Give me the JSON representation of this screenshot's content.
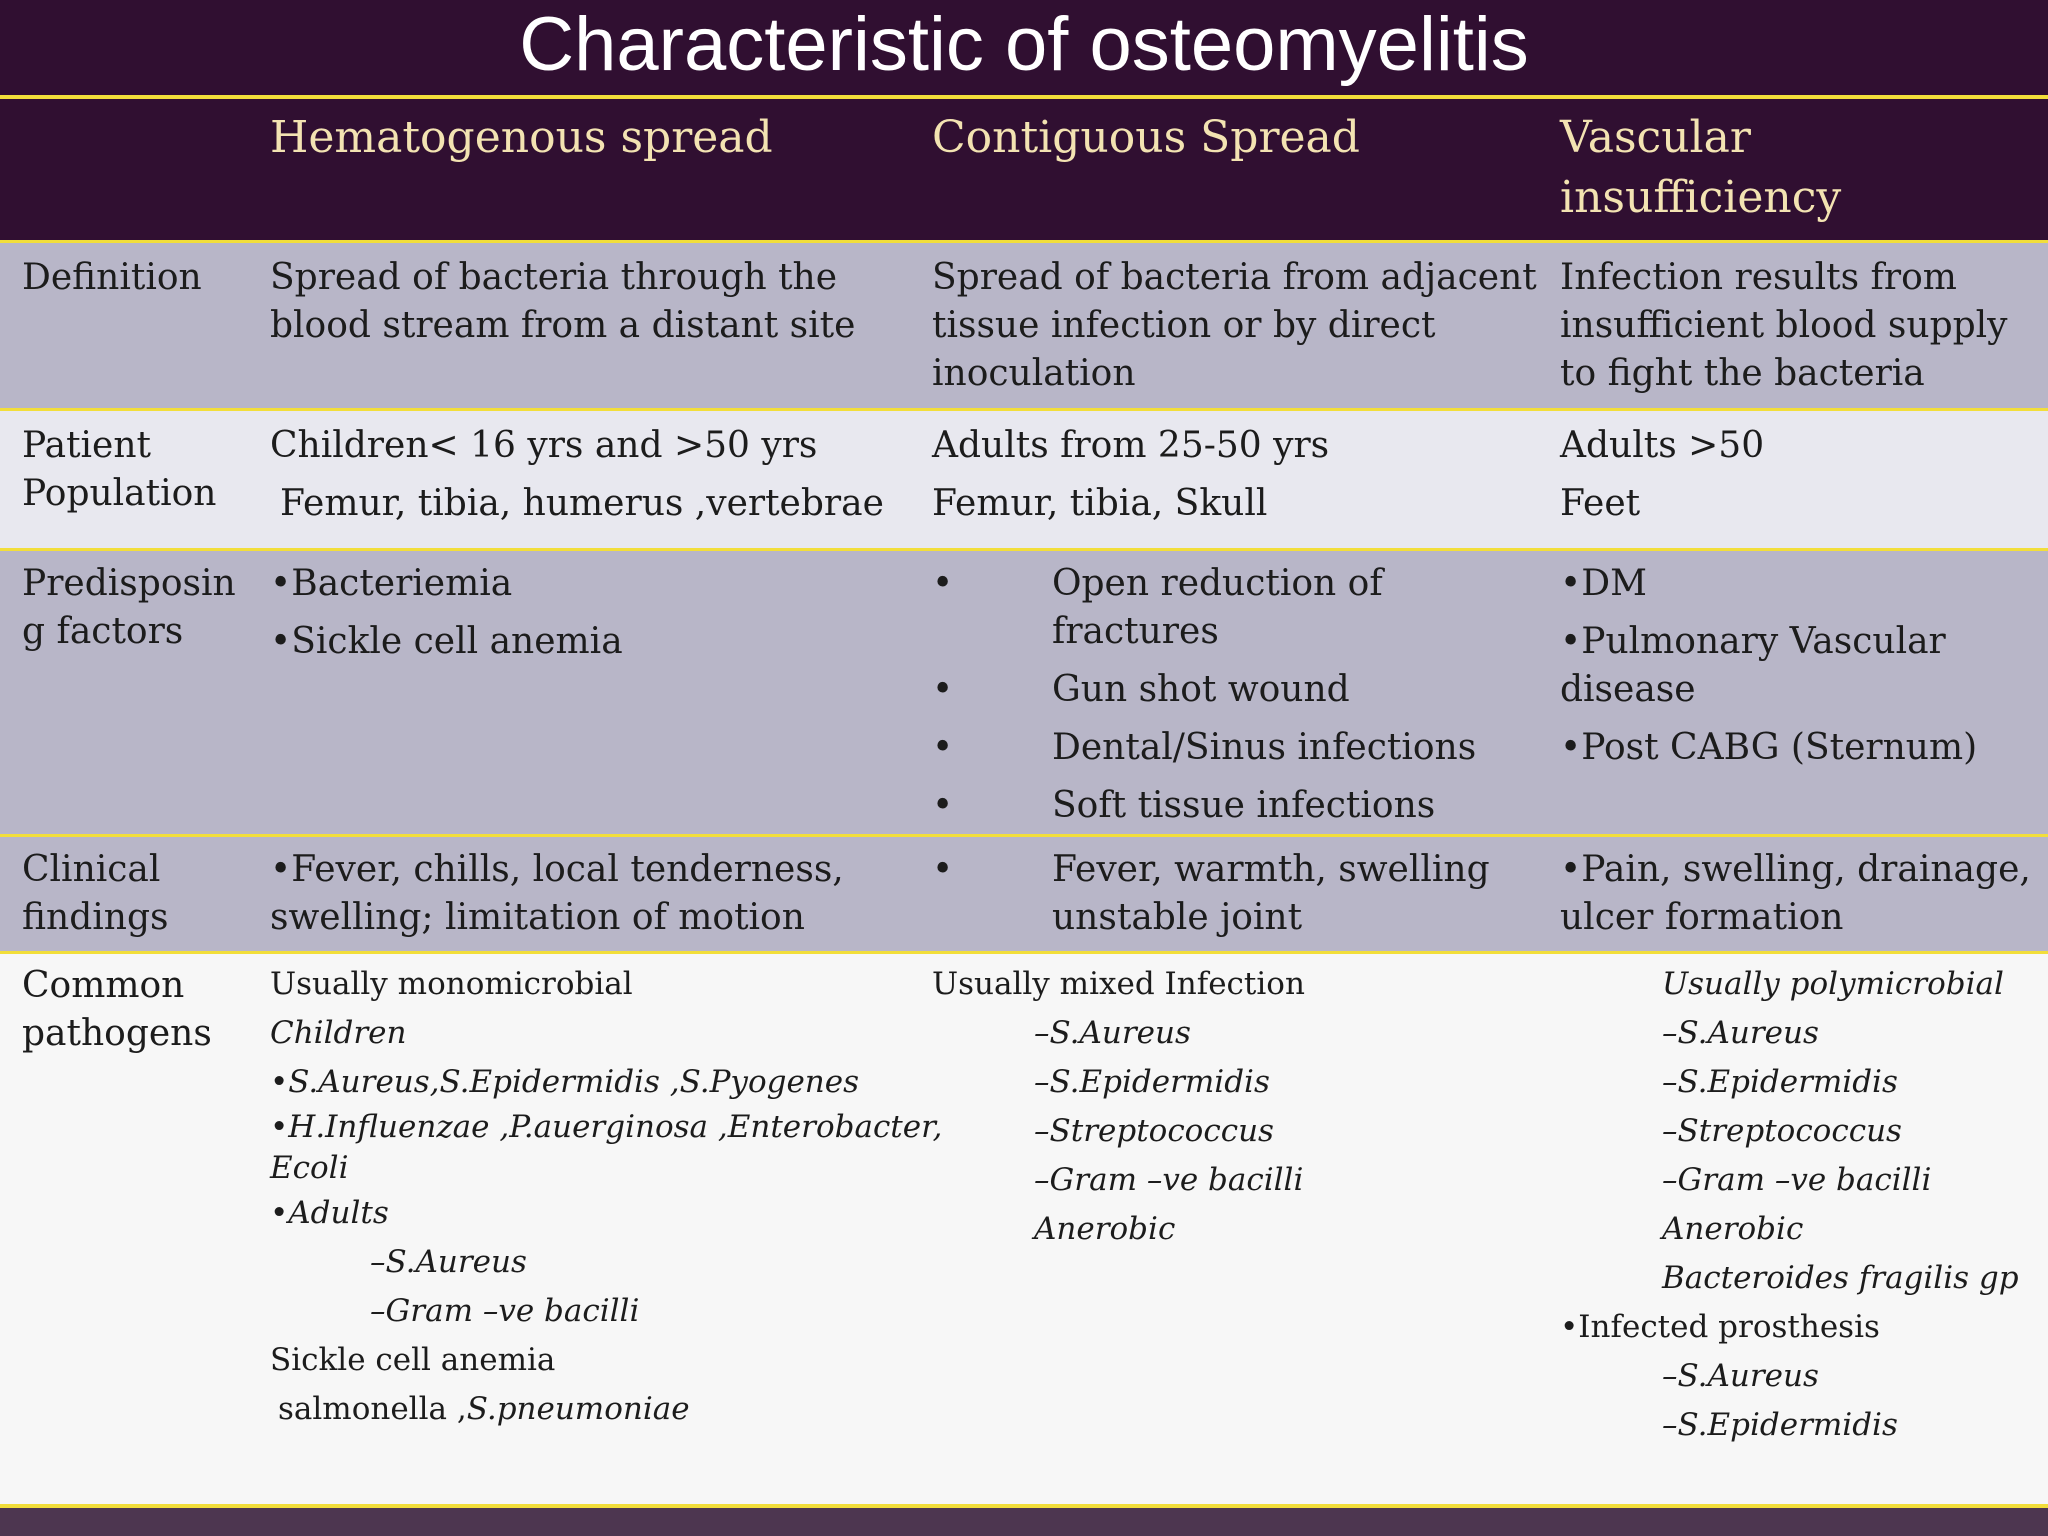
{
  "title": "Characteristic of osteomyelitis",
  "columns": [
    "Hematogenous spread",
    "Contiguous Spread",
    "Vascular insufficiency"
  ],
  "rows": {
    "definition": {
      "label": "Definition",
      "hematogenous": [
        "Spread of bacteria through the",
        "blood stream from a distant site"
      ],
      "contiguous": [
        "Spread of bacteria from adjacent",
        "tissue infection or by direct",
        "inoculation"
      ],
      "vascular": [
        "Infection results from",
        "insufficient blood supply",
        "to fight the bacteria"
      ]
    },
    "patient_population": {
      "label": [
        "Patient",
        "Population"
      ],
      "hematogenous": [
        "Children< 16 yrs and >50 yrs",
        "Femur, tibia, humerus ,vertebrae"
      ],
      "contiguous": [
        "Adults from 25-50 yrs",
        "Femur, tibia, Skull"
      ],
      "vascular": [
        "Adults >50",
        "Feet"
      ]
    },
    "predisposing": {
      "label": [
        "Predisposin",
        "g factors"
      ],
      "hematogenous": [
        "•Bacteriemia",
        "•Sickle cell anemia"
      ],
      "contiguous": [
        "Open reduction of fractures",
        "Gun shot wound",
        "Dental/Sinus infections",
        "Soft tissue infections"
      ],
      "vascular": [
        "•DM",
        "•Pulmonary Vascular disease",
        "•Post CABG (Sternum)"
      ]
    },
    "clinical": {
      "label": [
        "Clinical",
        "findings"
      ],
      "hematogenous": [
        "•Fever, chills, local tenderness,",
        "swelling; limitation of motion"
      ],
      "contiguous": [
        "Fever, warmth, swelling",
        "unstable joint"
      ],
      "vascular": [
        "•Pain, swelling, drainage,",
        "ulcer formation"
      ]
    },
    "common_pathogens": {
      "label": [
        "Common",
        "pathogens"
      ],
      "hematogenous": {
        "usually": "Usually monomicrobial",
        "children": "Children",
        "c1": "•S.Aureus,S.Epidermidis ,S.Pyogenes",
        "c2": [
          "•H.Influenzae ,P.auerginosa ,Enterobacter,",
          "Ecoli"
        ],
        "adults": "•Adults",
        "a1": "–S.Aureus",
        "a2": "–Gram –ve bacilli",
        "sickle": "Sickle cell anemia",
        "sickle_org1": "salmonella ,",
        "sickle_org2": "S.pneumoniae"
      },
      "contiguous": {
        "usually": "Usually mixed Infection",
        "items": [
          "–S.Aureus",
          "–S.Epidermidis",
          "–Streptococcus",
          "–Gram –ve bacilli",
          "Anerobic"
        ]
      },
      "vascular": {
        "usually": "Usually polymicrobial",
        "items": [
          "–S.Aureus",
          "–S.Epidermidis",
          "–Streptococcus",
          "–Gram –ve bacilli",
          "Anerobic",
          "Bacteroides fragilis gp"
        ],
        "prosthesis": "•Infected prosthesis",
        "prosthesis_items": [
          "–S.Aureus",
          "–S.Epidermidis"
        ]
      }
    }
  }
}
